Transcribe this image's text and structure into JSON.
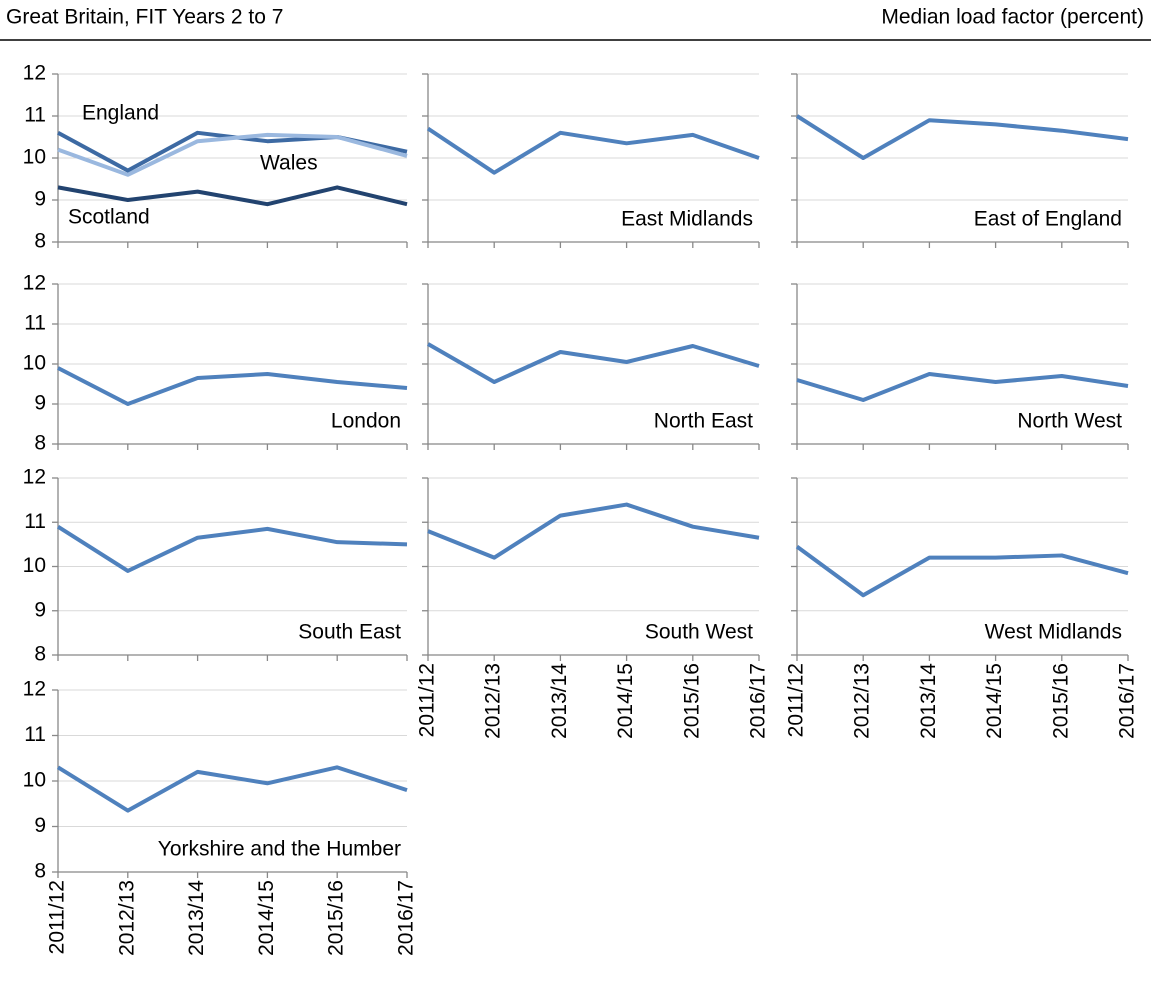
{
  "header": {
    "title": "Great Britain, FIT Years 2 to 7",
    "unit_label": "Median load factor (percent)"
  },
  "chart_data": [
    {
      "type": "line",
      "categories": [
        "2011/12",
        "2012/13",
        "2013/14",
        "2014/15",
        "2015/16",
        "2016/17"
      ],
      "ylim": [
        8,
        12
      ],
      "yticks": [
        8,
        9,
        10,
        11,
        12
      ],
      "grid": true,
      "series": [
        {
          "name": "England",
          "color": "#3d6aa3",
          "values": [
            10.6,
            9.7,
            10.6,
            10.4,
            10.5,
            10.15
          ]
        },
        {
          "name": "Wales",
          "color": "#9ab8df",
          "values": [
            10.2,
            9.6,
            10.4,
            10.55,
            10.5,
            10.05
          ]
        },
        {
          "name": "Scotland",
          "color": "#22436f",
          "values": [
            9.3,
            9.0,
            9.2,
            8.9,
            9.3,
            8.9
          ]
        }
      ]
    },
    {
      "type": "line",
      "title": "East Midlands",
      "categories": [
        "2011/12",
        "2012/13",
        "2013/14",
        "2014/15",
        "2015/16",
        "2016/17"
      ],
      "ylim": [
        8,
        12
      ],
      "yticks": [
        8,
        9,
        10,
        11,
        12
      ],
      "grid": true,
      "color": "#4f81bd",
      "values": [
        10.7,
        9.65,
        10.6,
        10.35,
        10.55,
        10.0
      ]
    },
    {
      "type": "line",
      "title": "East of England",
      "categories": [
        "2011/12",
        "2012/13",
        "2013/14",
        "2014/15",
        "2015/16",
        "2016/17"
      ],
      "ylim": [
        8,
        12
      ],
      "yticks": [
        8,
        9,
        10,
        11,
        12
      ],
      "grid": true,
      "color": "#4f81bd",
      "values": [
        11.0,
        10.0,
        10.9,
        10.8,
        10.65,
        10.45
      ]
    },
    {
      "type": "line",
      "title": "London",
      "categories": [
        "2011/12",
        "2012/13",
        "2013/14",
        "2014/15",
        "2015/16",
        "2016/17"
      ],
      "ylim": [
        8,
        12
      ],
      "yticks": [
        8,
        9,
        10,
        11,
        12
      ],
      "grid": true,
      "color": "#4f81bd",
      "values": [
        9.9,
        9.0,
        9.65,
        9.75,
        9.55,
        9.4
      ]
    },
    {
      "type": "line",
      "title": "North East",
      "categories": [
        "2011/12",
        "2012/13",
        "2013/14",
        "2014/15",
        "2015/16",
        "2016/17"
      ],
      "ylim": [
        8,
        12
      ],
      "yticks": [
        8,
        9,
        10,
        11,
        12
      ],
      "grid": true,
      "color": "#4f81bd",
      "values": [
        10.5,
        9.55,
        10.3,
        10.05,
        10.45,
        9.95
      ]
    },
    {
      "type": "line",
      "title": "North West",
      "categories": [
        "2011/12",
        "2012/13",
        "2013/14",
        "2014/15",
        "2015/16",
        "2016/17"
      ],
      "ylim": [
        8,
        12
      ],
      "yticks": [
        8,
        9,
        10,
        11,
        12
      ],
      "grid": true,
      "color": "#4f81bd",
      "values": [
        9.6,
        9.1,
        9.75,
        9.55,
        9.7,
        9.45
      ]
    },
    {
      "type": "line",
      "title": "South East",
      "categories": [
        "2011/12",
        "2012/13",
        "2013/14",
        "2014/15",
        "2015/16",
        "2016/17"
      ],
      "ylim": [
        8,
        12
      ],
      "yticks": [
        8,
        9,
        10,
        11,
        12
      ],
      "grid": true,
      "color": "#4f81bd",
      "values": [
        10.9,
        9.9,
        10.65,
        10.85,
        10.55,
        10.5
      ]
    },
    {
      "type": "line",
      "title": "South West",
      "categories": [
        "2011/12",
        "2012/13",
        "2013/14",
        "2014/15",
        "2015/16",
        "2016/17"
      ],
      "ylim": [
        8,
        12
      ],
      "yticks": [
        8,
        9,
        10,
        11,
        12
      ],
      "grid": true,
      "color": "#4f81bd",
      "values": [
        10.8,
        10.2,
        11.15,
        11.4,
        10.9,
        10.65
      ]
    },
    {
      "type": "line",
      "title": "West Midlands",
      "categories": [
        "2011/12",
        "2012/13",
        "2013/14",
        "2014/15",
        "2015/16",
        "2016/17"
      ],
      "ylim": [
        8,
        12
      ],
      "yticks": [
        8,
        9,
        10,
        11,
        12
      ],
      "grid": true,
      "color": "#4f81bd",
      "values": [
        10.45,
        9.35,
        10.2,
        10.2,
        10.25,
        9.85
      ]
    },
    {
      "type": "line",
      "title": "Yorkshire and the Humber",
      "categories": [
        "2011/12",
        "2012/13",
        "2013/14",
        "2014/15",
        "2015/16",
        "2016/17"
      ],
      "ylim": [
        8,
        12
      ],
      "yticks": [
        8,
        9,
        10,
        11,
        12
      ],
      "grid": true,
      "color": "#4f81bd",
      "values": [
        10.3,
        9.35,
        10.2,
        9.95,
        10.3,
        9.8
      ]
    }
  ]
}
